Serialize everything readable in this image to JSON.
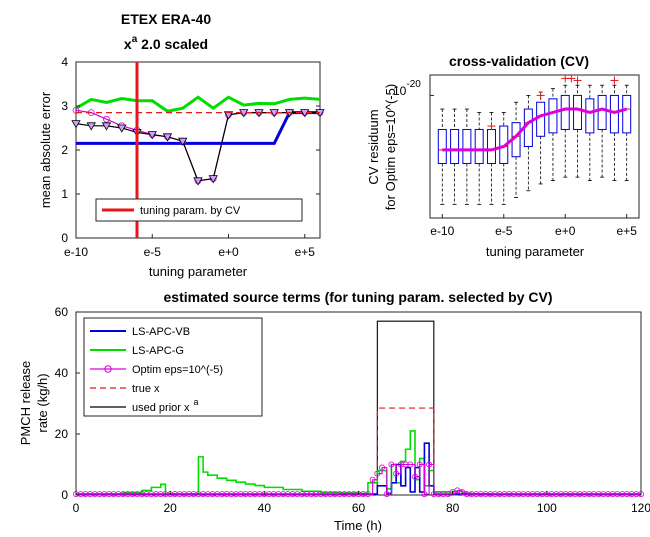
{
  "chart_data": [
    {
      "type": "line",
      "title": "ETEX ERA-40",
      "title_line2_base": "x",
      "title_line2_sup": "a",
      "title_line2_rest": " 2.0 scaled",
      "xlabel": "tuning parameter",
      "ylabel": "mean absolute error",
      "x_tick_labels": [
        "e-10",
        "e-5",
        "e+0",
        "e+5"
      ],
      "x_tick_values": [
        -10,
        -5,
        0,
        5
      ],
      "xlim": [
        -10,
        6
      ],
      "ylim": [
        0,
        4
      ],
      "y_ticks": [
        0,
        1,
        2,
        3,
        4
      ],
      "legend": {
        "entries": [
          "tuning param. by CV"
        ],
        "location": "lower-center"
      },
      "vline": {
        "x": -6,
        "color": "#e8151b",
        "name": "tuning param. by CV"
      },
      "series": [
        {
          "color": "#00dd00",
          "x": [
            -10,
            -9,
            -8,
            -7,
            -6,
            -5,
            -4,
            -3,
            -2,
            -1,
            0,
            1,
            2,
            3,
            4,
            5,
            6
          ],
          "values": [
            2.95,
            3.15,
            3.08,
            3.17,
            3.12,
            3.12,
            2.88,
            2.95,
            3.2,
            2.95,
            3.2,
            3.02,
            3.06,
            3.05,
            3.15,
            3.18,
            3.15
          ]
        },
        {
          "color": "#0000dd",
          "x": [
            -10,
            -8,
            -6,
            -4,
            -2,
            0,
            2,
            3,
            4,
            6
          ],
          "values": [
            2.15,
            2.15,
            2.15,
            2.15,
            2.15,
            2.15,
            2.15,
            2.15,
            2.85,
            2.85
          ]
        },
        {
          "color": "#dd00dd",
          "dashed": false,
          "marker": "circle",
          "x": [
            -10,
            -9,
            -8,
            -7,
            -6,
            -5,
            -4,
            -3,
            -2,
            -1,
            0,
            1,
            2,
            3,
            4,
            5,
            6
          ],
          "values": [
            2.9,
            2.85,
            2.7,
            2.55,
            2.45,
            2.35,
            2.3,
            2.2,
            1.3,
            1.35,
            2.8,
            2.85,
            2.85,
            2.85,
            2.85,
            2.85,
            2.85
          ]
        },
        {
          "color": "#000000",
          "marker": "triangle",
          "x": [
            -10,
            -9,
            -8,
            -7,
            -6,
            -5,
            -4,
            -3,
            -2,
            -1,
            0,
            1,
            2,
            3,
            4,
            5,
            6
          ],
          "values": [
            2.6,
            2.55,
            2.55,
            2.5,
            2.4,
            2.35,
            2.3,
            2.2,
            1.3,
            1.35,
            2.8,
            2.85,
            2.85,
            2.85,
            2.85,
            2.85,
            2.85
          ]
        },
        {
          "color": "#e8151b",
          "dashed": true,
          "x": [
            -10,
            6
          ],
          "values": [
            2.85,
            2.85
          ]
        }
      ]
    },
    {
      "type": "box",
      "title": "cross-validation (CV)",
      "xlabel": "tuning parameter",
      "ylabel_line1": "CV residuum",
      "ylabel_line2": "for Optim eps=10^(-5)",
      "x_tick_labels": [
        "e-10",
        "e-5",
        "e+0",
        "e+5"
      ],
      "x_tick_values": [
        -10,
        -5,
        0,
        5
      ],
      "xlim": [
        -11,
        6
      ],
      "ylim": [
        -21.8,
        -19.7
      ],
      "y_tick_label": "10",
      "y_tick_exp": "-20",
      "y_tick_value": -20,
      "boxes": [
        {
          "x": -10,
          "q1": -21.0,
          "q3": -20.5,
          "median": -20.8,
          "min": -21.6,
          "max": -20.2
        },
        {
          "x": -9,
          "q1": -21.0,
          "q3": -20.5,
          "median": -20.8,
          "min": -21.6,
          "max": -20.2
        },
        {
          "x": -8,
          "q1": -21.0,
          "q3": -20.5,
          "median": -20.8,
          "min": -21.6,
          "max": -20.2
        },
        {
          "x": -7,
          "q1": -21.0,
          "q3": -20.5,
          "median": -20.8,
          "min": -21.6,
          "max": -20.25
        },
        {
          "x": -6,
          "q1": -21.0,
          "q3": -20.5,
          "median": -20.8,
          "min": -21.6,
          "max": -20.25
        },
        {
          "x": -5,
          "q1": -21.0,
          "q3": -20.45,
          "median": -20.75,
          "min": -21.6,
          "max": -20.25
        },
        {
          "x": -4,
          "q1": -20.9,
          "q3": -20.4,
          "median": -20.6,
          "min": -21.5,
          "max": -20.1
        },
        {
          "x": -3,
          "q1": -20.75,
          "q3": -20.2,
          "median": -20.4,
          "min": -21.4,
          "max": -20.0
        },
        {
          "x": -2,
          "q1": -20.6,
          "q3": -20.1,
          "median": -20.3,
          "min": -21.3,
          "max": -19.95
        },
        {
          "x": -1,
          "q1": -20.55,
          "q3": -20.05,
          "median": -20.25,
          "min": -21.25,
          "max": -19.9
        },
        {
          "x": 0,
          "q1": -20.5,
          "q3": -20.0,
          "median": -20.2,
          "min": -21.2,
          "max": -19.85
        },
        {
          "x": 1,
          "q1": -20.5,
          "q3": -20.0,
          "median": -20.2,
          "min": -21.2,
          "max": -19.85
        },
        {
          "x": 2,
          "q1": -20.55,
          "q3": -20.05,
          "median": -20.25,
          "min": -21.25,
          "max": -19.85
        },
        {
          "x": 3,
          "q1": -20.5,
          "q3": -20.0,
          "median": -20.2,
          "min": -21.2,
          "max": -19.85
        },
        {
          "x": 4,
          "q1": -20.55,
          "q3": -20.0,
          "median": -20.25,
          "min": -21.25,
          "max": -19.85
        },
        {
          "x": 5,
          "q1": -20.55,
          "q3": -20.0,
          "median": -20.2,
          "min": -21.25,
          "max": -19.85
        }
      ],
      "outliers": [
        {
          "x": -6,
          "y": -20.45
        },
        {
          "x": -2,
          "y": -20.0
        },
        {
          "x": 0,
          "y": -19.75
        },
        {
          "x": 0.5,
          "y": -19.75
        },
        {
          "x": 1,
          "y": -19.78
        },
        {
          "x": 4,
          "y": -19.78
        }
      ],
      "median_line_color": "#dd00dd",
      "box_color": "#0000dd",
      "outlier_color": "#e8151b"
    },
    {
      "type": "line",
      "title": "estimated source terms (for tuning param. selected by CV)",
      "xlabel": "Time (h)",
      "ylabel_line1": "PMCH release",
      "ylabel_line2": "rate (kg/h)",
      "xlim": [
        0,
        120
      ],
      "ylim": [
        0,
        60
      ],
      "x_ticks": [
        0,
        20,
        40,
        60,
        80,
        100,
        120
      ],
      "y_ticks": [
        0,
        20,
        40,
        60
      ],
      "legend": {
        "location": "top-left",
        "entries": [
          "LS-APC-VB",
          "LS-APC-G",
          "Optim eps=10^(-5)",
          "true x",
          "used prior x"
        ],
        "prior_sup": "a"
      },
      "series": [
        {
          "name": "LS-APC-VB",
          "color": "#0000dd",
          "step": true,
          "x": [
            0,
            62,
            64,
            66,
            67,
            68,
            69,
            70,
            71,
            72,
            73,
            74,
            75,
            76,
            78,
            120
          ],
          "values": [
            0.3,
            0.3,
            3,
            0.5,
            4,
            10,
            3,
            9,
            1,
            9,
            1,
            17,
            3,
            0.3,
            0.3,
            0.3
          ]
        },
        {
          "name": "LS-APC-G",
          "color": "#00dd00",
          "step": true,
          "x": [
            0,
            10,
            14,
            16,
            18,
            19,
            26,
            27,
            28,
            30,
            32,
            34,
            36,
            38,
            40,
            44,
            48,
            52,
            56,
            60,
            62,
            64,
            66,
            67,
            68,
            69,
            70,
            71,
            72,
            73,
            74,
            75,
            76,
            80,
            82,
            84,
            88,
            120
          ],
          "values": [
            0.3,
            0.8,
            1.5,
            2.5,
            3.5,
            0.3,
            12.5,
            7.5,
            6.5,
            5.5,
            4.8,
            4.2,
            3.6,
            3.1,
            2.5,
            1.8,
            1.2,
            0.9,
            0.7,
            0.5,
            4,
            8,
            2,
            10,
            4,
            11,
            15,
            21,
            5,
            12,
            3,
            8,
            1,
            1.2,
            0.6,
            0.4,
            0.3,
            0.3
          ]
        },
        {
          "name": "Optim eps=10^(-5)",
          "color": "#dd00dd",
          "step": true,
          "marker": "circle",
          "x": [
            0,
            62,
            63,
            64,
            65,
            66,
            67,
            68,
            69,
            70,
            71,
            72,
            73,
            74,
            75,
            76,
            77,
            80,
            81,
            82,
            83,
            120
          ],
          "values": [
            0.3,
            0.3,
            5,
            7,
            9,
            0.3,
            10,
            7,
            10,
            10,
            10,
            6,
            10,
            0.3,
            10,
            0.3,
            0.3,
            1,
            1.5,
            1,
            0.3,
            0.3
          ]
        },
        {
          "name": "true x",
          "color": "#e8151b",
          "dashed": true,
          "step": true,
          "x": [
            0,
            64,
            76,
            120
          ],
          "values": [
            0,
            28.5,
            0,
            0
          ]
        },
        {
          "name": "used prior x",
          "color": "#000000",
          "step": true,
          "x": [
            0,
            64,
            76,
            120
          ],
          "values": [
            0,
            57,
            0,
            0
          ]
        }
      ]
    }
  ]
}
